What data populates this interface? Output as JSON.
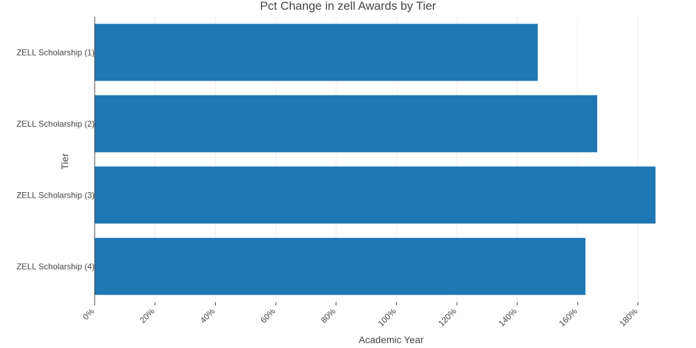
{
  "chart_data": {
    "type": "bar",
    "orientation": "horizontal",
    "title": "Pct Change in zell Awards by Tier",
    "xlabel": "Academic Year",
    "ylabel": "Tier",
    "categories": [
      "ZELL Scholarship (1)",
      "ZELL Scholarship (2)",
      "ZELL Scholarship (3)",
      "ZELL Scholarship (4)"
    ],
    "values": [
      146.8,
      166.5,
      185.8,
      162.6
    ],
    "xlim": [
      0,
      187
    ],
    "xticks": [
      0,
      20,
      40,
      60,
      80,
      100,
      120,
      140,
      160,
      180
    ],
    "tick_suffix": "%",
    "grid": true,
    "colors": {
      "bar": "#1f77b4",
      "grid": "#eeeeee",
      "axis": "#444444",
      "text": "#444444"
    }
  }
}
